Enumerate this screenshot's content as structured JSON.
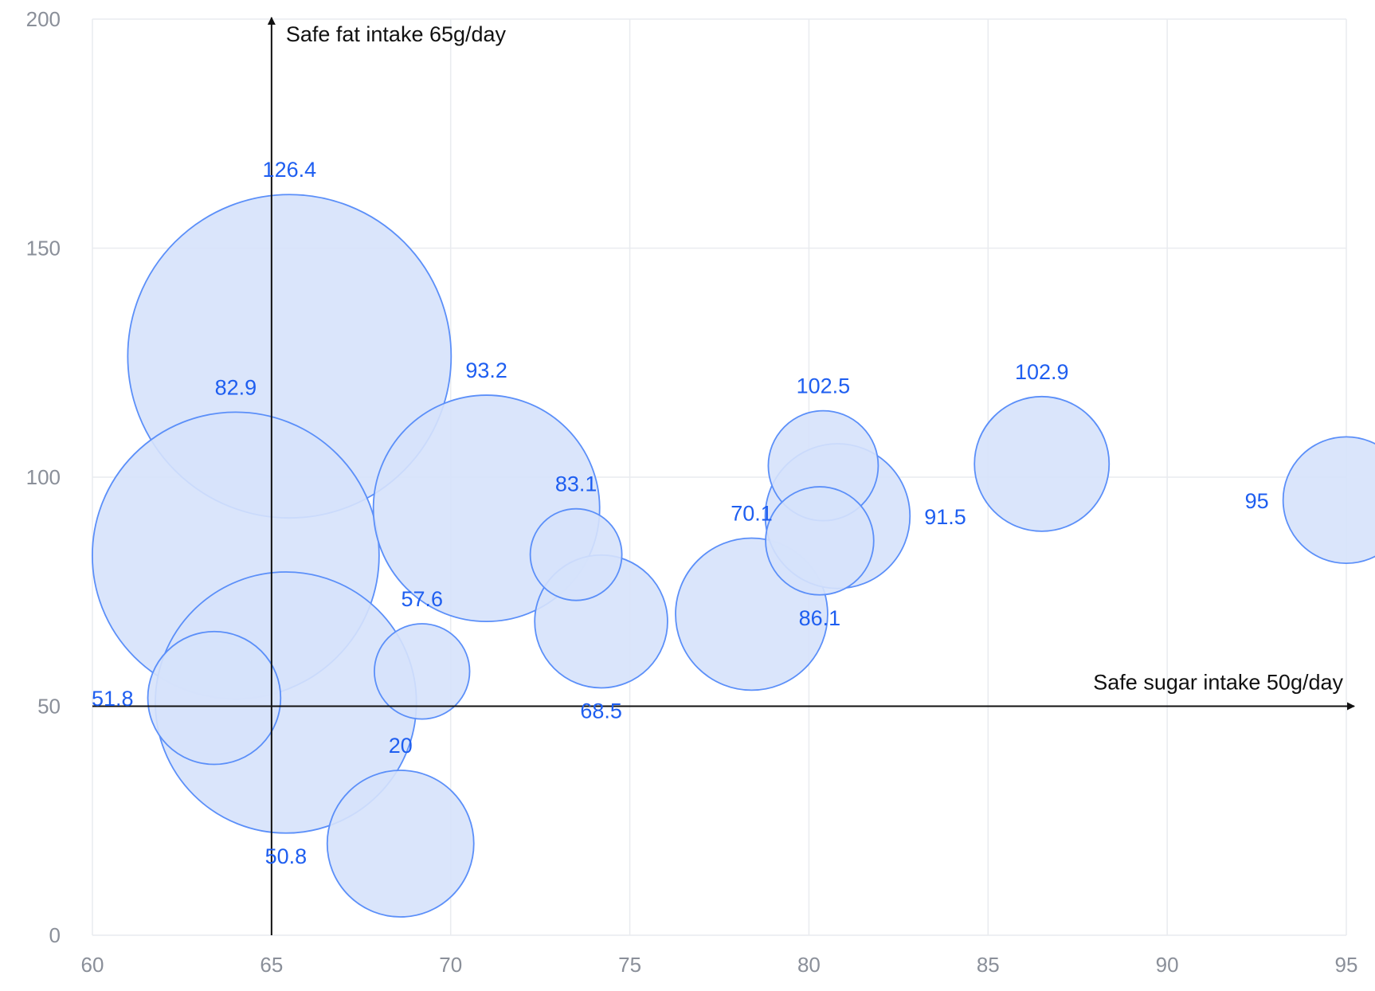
{
  "chart_data": {
    "type": "scatter",
    "variant": "bubble",
    "title": "",
    "xlabel": "",
    "ylabel": "",
    "xlim": [
      60,
      95
    ],
    "ylim": [
      0,
      200
    ],
    "x_ticks": [
      60,
      65,
      70,
      75,
      80,
      85,
      90,
      95
    ],
    "y_ticks": [
      0,
      50,
      100,
      150,
      200
    ],
    "grid": true,
    "colors": {
      "bubble_fill": "#d6e2fb",
      "bubble_stroke": "#5b8ff9",
      "label": "#1e5ef0",
      "grid": "#e9ebef",
      "tick": "#8a8f99",
      "reference": "#111111"
    },
    "reference_lines": [
      {
        "axis": "x",
        "value": 65,
        "label": "Safe fat intake 65g/day"
      },
      {
        "axis": "y",
        "value": 50,
        "label": "Safe sugar intake 50g/day"
      }
    ],
    "points": [
      {
        "x": 95,
        "y": 95,
        "size": 13.8,
        "label": "95"
      },
      {
        "x": 86.5,
        "y": 102.9,
        "size": 14.7,
        "label": "102.9"
      },
      {
        "x": 80.8,
        "y": 91.5,
        "size": 15.8,
        "label": "91.5"
      },
      {
        "x": 80.4,
        "y": 102.5,
        "size": 12,
        "label": "102.5"
      },
      {
        "x": 80.3,
        "y": 86.1,
        "size": 11.8,
        "label": "86.1"
      },
      {
        "x": 78.4,
        "y": 70.1,
        "size": 16.6,
        "label": "70.1"
      },
      {
        "x": 74.2,
        "y": 68.5,
        "size": 14.5,
        "label": "68.5"
      },
      {
        "x": 73.5,
        "y": 83.1,
        "size": 10,
        "label": "83.1"
      },
      {
        "x": 71,
        "y": 93.2,
        "size": 24.7,
        "label": "93.2"
      },
      {
        "x": 69.2,
        "y": 57.6,
        "size": 10.4,
        "label": "57.6"
      },
      {
        "x": 68.6,
        "y": 20,
        "size": 16,
        "label": "20"
      },
      {
        "x": 65.5,
        "y": 126.4,
        "size": 35.3,
        "label": "126.4"
      },
      {
        "x": 65.4,
        "y": 50.8,
        "size": 28.5,
        "label": "50.8"
      },
      {
        "x": 64,
        "y": 82.9,
        "size": 31.3,
        "label": "82.9"
      },
      {
        "x": 63.4,
        "y": 51.8,
        "size": 14.5,
        "label": "51.8"
      }
    ]
  }
}
